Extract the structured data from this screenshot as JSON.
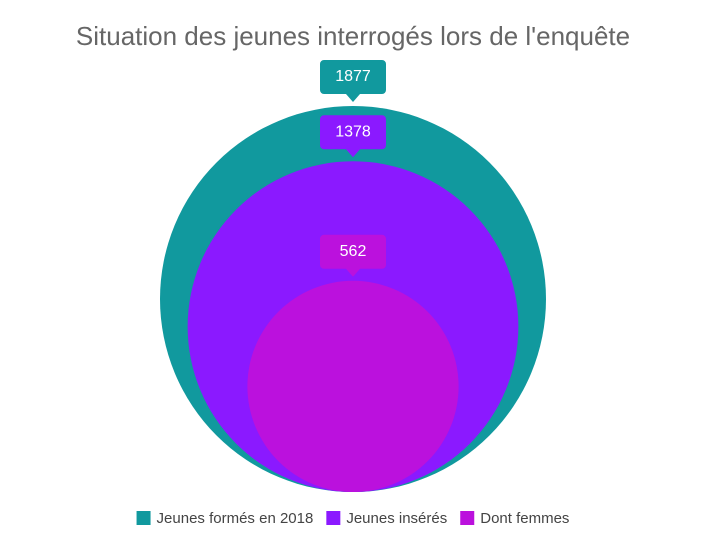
{
  "chart_data": {
    "type": "bubble",
    "title": "Situation des jeunes interrogés lors de l'enquête",
    "series": [
      {
        "name": "Jeunes formés en 2018",
        "color": "#11999e",
        "values": [
          1877
        ]
      },
      {
        "name": "Jeunes insérés",
        "color": "#8b19ff",
        "values": [
          1378
        ]
      },
      {
        "name": "Dont femmes",
        "color": "#bb11dd",
        "values": [
          562
        ]
      }
    ]
  }
}
